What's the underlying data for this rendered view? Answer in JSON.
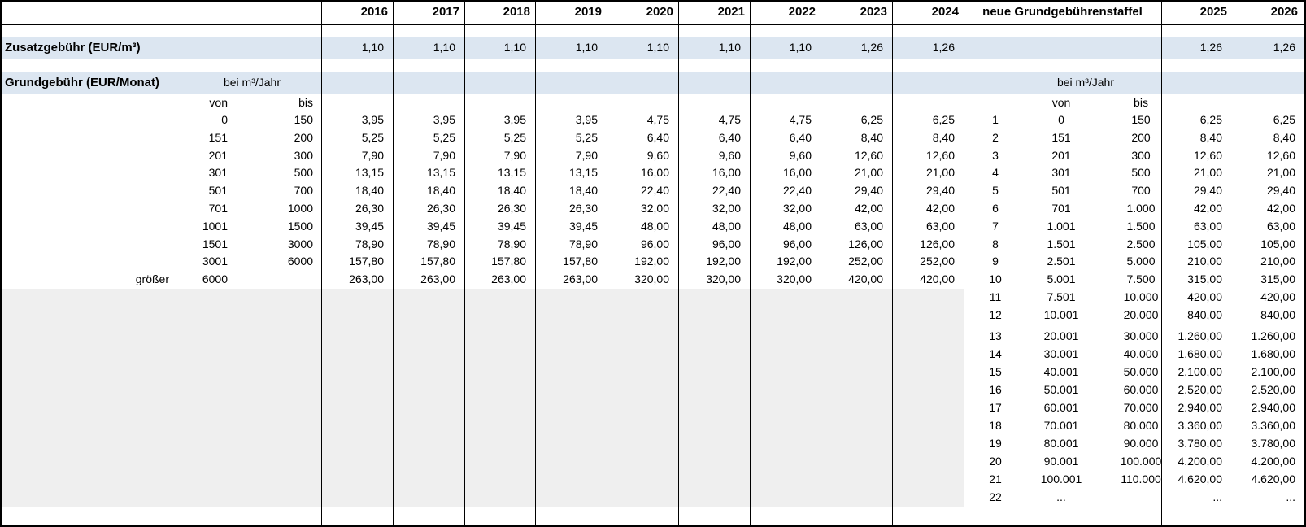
{
  "colors": {
    "highlight_blue": "#dce6f1",
    "empty_gray": "#efefef",
    "border": "#000000"
  },
  "title_row": {
    "years": [
      "2016",
      "2017",
      "2018",
      "2019",
      "2020",
      "2021",
      "2022",
      "2023",
      "2024"
    ],
    "new_scale_label": "neue Grundgebührenstaffel",
    "new_years": [
      "2025",
      "2026"
    ]
  },
  "zusatzgebuehr": {
    "label": "Zusatzgebühr (EUR/m³)",
    "values_by_year": [
      "1,10",
      "1,10",
      "1,10",
      "1,10",
      "1,10",
      "1,10",
      "1,10",
      "1,26",
      "1,26"
    ],
    "values_new_years": [
      "1,26",
      "1,26"
    ]
  },
  "grundgebuehr": {
    "label": "Grundgebühr (EUR/Monat)",
    "bei_label": "bei m³/Jahr",
    "von_label": "von",
    "bis_label": "bis",
    "old_rows": [
      {
        "prefix": "",
        "von": "0",
        "bis": "150",
        "values": [
          "3,95",
          "3,95",
          "3,95",
          "3,95",
          "4,75",
          "4,75",
          "4,75",
          "6,25",
          "6,25"
        ]
      },
      {
        "prefix": "",
        "von": "151",
        "bis": "200",
        "values": [
          "5,25",
          "5,25",
          "5,25",
          "5,25",
          "6,40",
          "6,40",
          "6,40",
          "8,40",
          "8,40"
        ]
      },
      {
        "prefix": "",
        "von": "201",
        "bis": "300",
        "values": [
          "7,90",
          "7,90",
          "7,90",
          "7,90",
          "9,60",
          "9,60",
          "9,60",
          "12,60",
          "12,60"
        ]
      },
      {
        "prefix": "",
        "von": "301",
        "bis": "500",
        "values": [
          "13,15",
          "13,15",
          "13,15",
          "13,15",
          "16,00",
          "16,00",
          "16,00",
          "21,00",
          "21,00"
        ]
      },
      {
        "prefix": "",
        "von": "501",
        "bis": "700",
        "values": [
          "18,40",
          "18,40",
          "18,40",
          "18,40",
          "22,40",
          "22,40",
          "22,40",
          "29,40",
          "29,40"
        ]
      },
      {
        "prefix": "",
        "von": "701",
        "bis": "1000",
        "values": [
          "26,30",
          "26,30",
          "26,30",
          "26,30",
          "32,00",
          "32,00",
          "32,00",
          "42,00",
          "42,00"
        ]
      },
      {
        "prefix": "",
        "von": "1001",
        "bis": "1500",
        "values": [
          "39,45",
          "39,45",
          "39,45",
          "39,45",
          "48,00",
          "48,00",
          "48,00",
          "63,00",
          "63,00"
        ]
      },
      {
        "prefix": "",
        "von": "1501",
        "bis": "3000",
        "values": [
          "78,90",
          "78,90",
          "78,90",
          "78,90",
          "96,00",
          "96,00",
          "96,00",
          "126,00",
          "126,00"
        ]
      },
      {
        "prefix": "",
        "von": "3001",
        "bis": "6000",
        "values": [
          "157,80",
          "157,80",
          "157,80",
          "157,80",
          "192,00",
          "192,00",
          "192,00",
          "252,00",
          "252,00"
        ]
      },
      {
        "prefix": "größer",
        "von": "6000",
        "bis": "",
        "values": [
          "263,00",
          "263,00",
          "263,00",
          "263,00",
          "320,00",
          "320,00",
          "320,00",
          "420,00",
          "420,00"
        ]
      }
    ],
    "new_scale": {
      "bei_label": "bei m³/Jahr",
      "von_label": "von",
      "bis_label": "bis",
      "rows": [
        {
          "nr": "1",
          "von": "0",
          "bis": "150",
          "y2025": "6,25",
          "y2026": "6,25"
        },
        {
          "nr": "2",
          "von": "151",
          "bis": "200",
          "y2025": "8,40",
          "y2026": "8,40"
        },
        {
          "nr": "3",
          "von": "201",
          "bis": "300",
          "y2025": "12,60",
          "y2026": "12,60"
        },
        {
          "nr": "4",
          "von": "301",
          "bis": "500",
          "y2025": "21,00",
          "y2026": "21,00"
        },
        {
          "nr": "5",
          "von": "501",
          "bis": "700",
          "y2025": "29,40",
          "y2026": "29,40"
        },
        {
          "nr": "6",
          "von": "701",
          "bis": "1.000",
          "y2025": "42,00",
          "y2026": "42,00"
        },
        {
          "nr": "7",
          "von": "1.001",
          "bis": "1.500",
          "y2025": "63,00",
          "y2026": "63,00"
        },
        {
          "nr": "8",
          "von": "1.501",
          "bis": "2.500",
          "y2025": "105,00",
          "y2026": "105,00"
        },
        {
          "nr": "9",
          "von": "2.501",
          "bis": "5.000",
          "y2025": "210,00",
          "y2026": "210,00"
        },
        {
          "nr": "10",
          "von": "5.001",
          "bis": "7.500",
          "y2025": "315,00",
          "y2026": "315,00"
        },
        {
          "nr": "11",
          "von": "7.501",
          "bis": "10.000",
          "y2025": "420,00",
          "y2026": "420,00"
        },
        {
          "nr": "12",
          "von": "10.001",
          "bis": "20.000",
          "y2025": "840,00",
          "y2026": "840,00"
        },
        {
          "nr": "13",
          "von": "20.001",
          "bis": "30.000",
          "y2025": "1.260,00",
          "y2026": "1.260,00"
        },
        {
          "nr": "14",
          "von": "30.001",
          "bis": "40.000",
          "y2025": "1.680,00",
          "y2026": "1.680,00"
        },
        {
          "nr": "15",
          "von": "40.001",
          "bis": "50.000",
          "y2025": "2.100,00",
          "y2026": "2.100,00"
        },
        {
          "nr": "16",
          "von": "50.001",
          "bis": "60.000",
          "y2025": "2.520,00",
          "y2026": "2.520,00"
        },
        {
          "nr": "17",
          "von": "60.001",
          "bis": "70.000",
          "y2025": "2.940,00",
          "y2026": "2.940,00"
        },
        {
          "nr": "18",
          "von": "70.001",
          "bis": "80.000",
          "y2025": "3.360,00",
          "y2026": "3.360,00"
        },
        {
          "nr": "19",
          "von": "80.001",
          "bis": "90.000",
          "y2025": "3.780,00",
          "y2026": "3.780,00"
        },
        {
          "nr": "20",
          "von": "90.001",
          "bis": "100.000",
          "y2025": "4.200,00",
          "y2026": "4.200,00"
        },
        {
          "nr": "21",
          "von": "100.001",
          "bis": "110.000",
          "y2025": "4.620,00",
          "y2026": "4.620,00"
        },
        {
          "nr": "22",
          "von": "...",
          "bis": "",
          "y2025": "...",
          "y2026": "..."
        }
      ]
    }
  }
}
